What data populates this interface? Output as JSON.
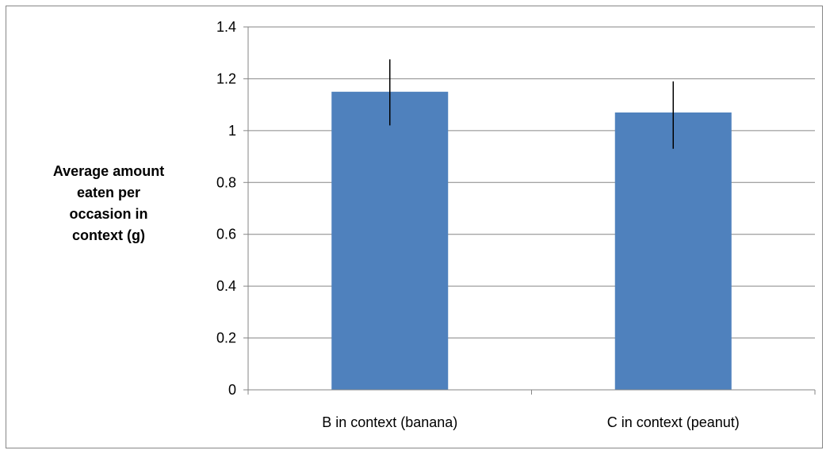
{
  "chart_data": {
    "type": "bar",
    "title": "",
    "xlabel": "",
    "ylabel": "Average amount eaten per occasion in context (g)",
    "ylabel_lines": [
      "Average amount",
      "eaten per",
      "occasion in",
      "context (g)"
    ],
    "categories": [
      "B in context (banana)",
      "C in context (peanut)"
    ],
    "values": [
      1.15,
      1.07
    ],
    "error_bars": [
      {
        "low": 1.02,
        "high": 1.275
      },
      {
        "low": 0.93,
        "high": 1.19
      }
    ],
    "ylim": [
      0,
      1.4
    ],
    "yticks": [
      0,
      0.2,
      0.4,
      0.6,
      0.8,
      1,
      1.2,
      1.4
    ],
    "ytick_labels": [
      "0",
      "0.2",
      "0.4",
      "0.6",
      "0.8",
      "1",
      "1.2",
      "1.4"
    ],
    "grid": true,
    "legend": "none",
    "colors": {
      "bar": "#4f81bd",
      "grid": "#868686",
      "axis": "#868686",
      "error": "#000000",
      "frame": "#868686"
    }
  }
}
